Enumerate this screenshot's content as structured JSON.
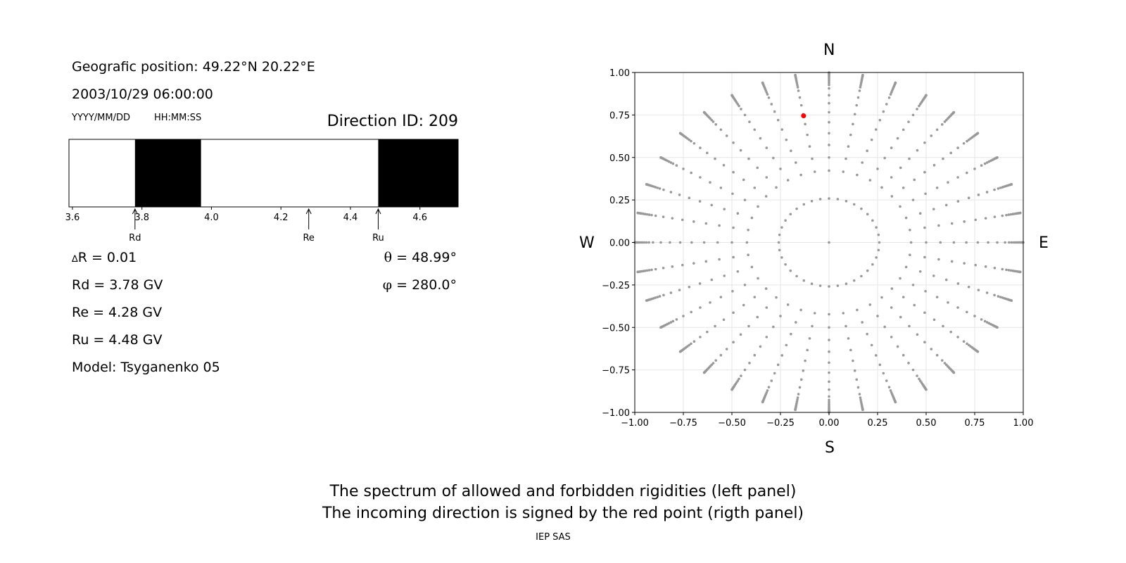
{
  "left_panel": {
    "position_text": "Geografic position: 49.22°N 20.22°E",
    "datetime_text": "2003/10/29 06:00:00",
    "date_format": "YYYY/MM/DD",
    "time_format": "HH:MM:SS",
    "direction_id_text": "Direction ID: 209",
    "delta_r_symbol": "∆",
    "delta_r_text": "R = 0.01",
    "rd_text": "Rd = 3.78 GV",
    "re_text": "Re = 4.28 GV",
    "ru_text": "Ru = 4.48 GV",
    "model_text": "Model: Tsyganenko 05",
    "theta_symbol": "θ",
    "theta_text": " = 48.99°",
    "phi_symbol": "φ",
    "phi_text": " = 280.0°"
  },
  "compass": {
    "north": "N",
    "south": "S",
    "west": "W",
    "east": "E"
  },
  "caption": {
    "line1": "The spectrum of allowed and forbidden rigidities (left panel)",
    "line2": "The incoming direction is signed by the red point (rigth panel)"
  },
  "footer": "IEP SAS",
  "chart_data": [
    {
      "type": "bar",
      "subtype": "rigidity-spectrum",
      "xlim": [
        3.59,
        4.71
      ],
      "ticks": [
        {
          "value": 3.6,
          "label": "3.6"
        },
        {
          "value": 3.8,
          "label": "3.8"
        },
        {
          "value": 4.0,
          "label": "4.0"
        },
        {
          "value": 4.2,
          "label": "4.2"
        },
        {
          "value": 4.4,
          "label": "4.4"
        },
        {
          "value": 4.6,
          "label": "4.6"
        }
      ],
      "forbidden_bands": [
        [
          3.78,
          3.97
        ],
        [
          4.48,
          4.71
        ]
      ],
      "markers": [
        {
          "name": "Rd",
          "value": 3.78
        },
        {
          "name": "Re",
          "value": 4.28
        },
        {
          "name": "Ru",
          "value": 4.48
        }
      ],
      "colors": {
        "forbidden": "#000000",
        "allowed": "#ffffff"
      }
    },
    {
      "type": "scatter",
      "subtype": "direction-grid",
      "xlim": [
        -1.0,
        1.0
      ],
      "ylim": [
        -1.0,
        1.0
      ],
      "xticks": [
        "−1.00",
        "−0.75",
        "−0.50",
        "−0.25",
        "0.00",
        "0.25",
        "0.50",
        "0.75",
        "1.00"
      ],
      "yticks": [
        "−1.00",
        "−0.75",
        "−0.50",
        "−0.25",
        "0.00",
        "0.25",
        "0.50",
        "0.75",
        "1.00"
      ],
      "tick_values": [
        -1.0,
        -0.75,
        -0.5,
        -0.25,
        0.0,
        0.25,
        0.5,
        0.75,
        1.0
      ],
      "grid": true,
      "grid_pattern": {
        "azimuth_step_deg": 10,
        "zenith_angles_deg": [
          0,
          15,
          25,
          30,
          35,
          40,
          45,
          50,
          55,
          60,
          65,
          68,
          70,
          72,
          74,
          76,
          78,
          80,
          82,
          84,
          86,
          88,
          90
        ]
      },
      "center_point": [
        0,
        0
      ],
      "highlight": {
        "theta_deg": 48.99,
        "phi_deg": 280.0,
        "x": -0.131,
        "y": 0.745
      },
      "colors": {
        "grid_points": "#999999",
        "highlight": "#ff0000"
      }
    }
  ]
}
